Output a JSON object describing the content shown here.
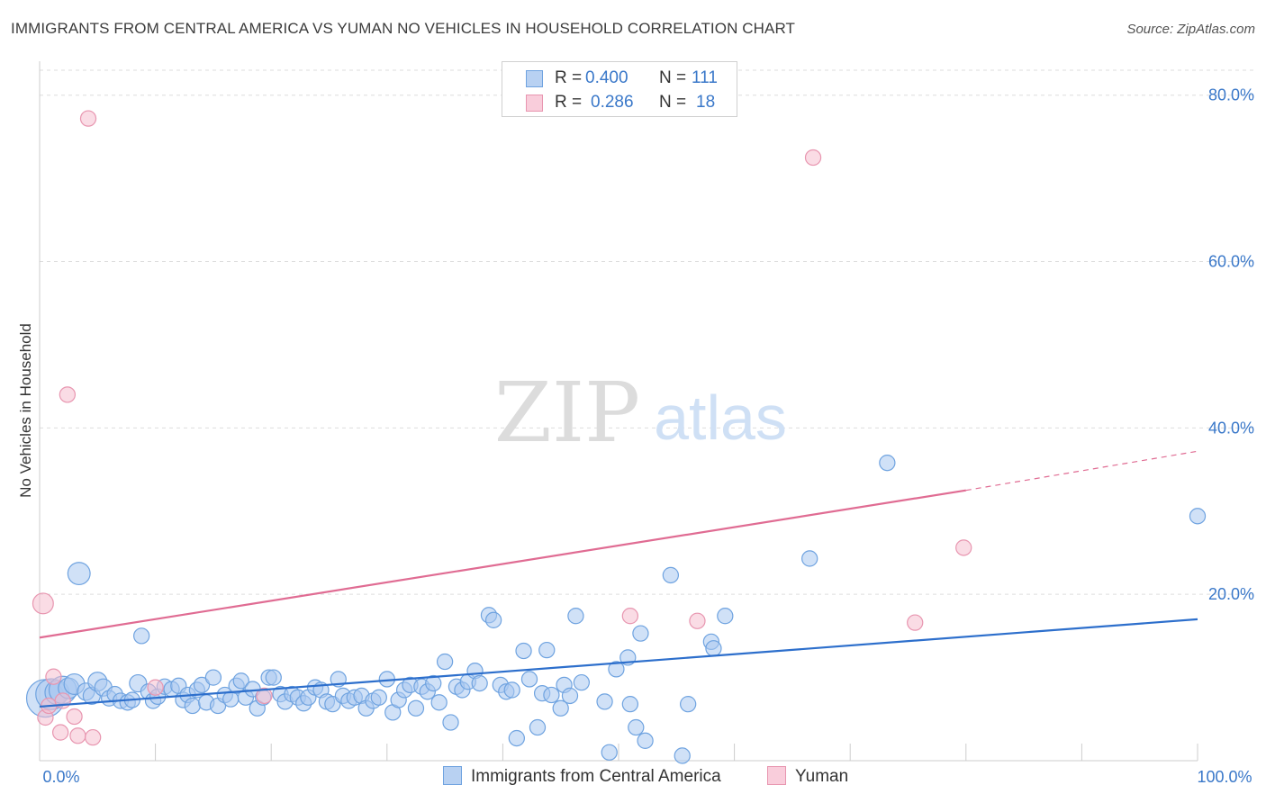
{
  "title": "IMMIGRANTS FROM CENTRAL AMERICA VS YUMAN NO VEHICLES IN HOUSEHOLD CORRELATION CHART",
  "source": "Source: ZipAtlas.com",
  "watermark": {
    "zip": "ZIP",
    "atlas": "atlas"
  },
  "legend_top": {
    "rows": [
      {
        "r_label": "R =",
        "r_value": "0.400",
        "n_label": "N =",
        "n_value": "111"
      },
      {
        "r_label": "R =",
        "r_value": "0.286",
        "n_label": "N =",
        "n_value": "18"
      }
    ]
  },
  "chart_data": {
    "type": "scatter",
    "title": "IMMIGRANTS FROM CENTRAL AMERICA VS YUMAN NO VEHICLES IN HOUSEHOLD CORRELATION CHART",
    "xlabel": "",
    "ylabel": "No Vehicles in Household",
    "xlim": [
      0,
      100
    ],
    "ylim": [
      0,
      83
    ],
    "x_tick_labels": [
      "0.0%",
      "100.0%"
    ],
    "y_ticks": [
      20,
      40,
      60,
      80
    ],
    "y_tick_labels": [
      "20.0%",
      "40.0%",
      "60.0%",
      "80.0%"
    ],
    "grid": true,
    "legend_position": "top-center and bottom",
    "colors": {
      "blue": "#6fa3e0",
      "blue_fill": "#a9c8f0",
      "blue_line": "#2d6fcc",
      "pink": "#e896b0",
      "pink_fill": "#f6bfd0",
      "pink_line": "#e06c93",
      "axis_text": "#3a78c9"
    },
    "series": [
      {
        "name": "Immigrants from Central America",
        "R": 0.4,
        "N": 111,
        "trend": {
          "x": [
            0,
            100
          ],
          "y": [
            6.5,
            17.0
          ],
          "dashed_from": null
        },
        "points": [
          [
            0.5,
            7.5,
            22
          ],
          [
            1,
            8,
            18
          ],
          [
            1.5,
            8.2,
            14
          ],
          [
            2,
            8.5,
            16
          ],
          [
            2.5,
            8.7,
            12
          ],
          [
            3,
            9.2,
            12
          ],
          [
            3.4,
            22.5,
            13
          ],
          [
            4,
            8.3,
            10
          ],
          [
            4.5,
            7.8,
            10
          ],
          [
            5,
            9.5,
            11
          ],
          [
            5.5,
            8.8,
            10
          ],
          [
            6,
            7.5,
            9
          ],
          [
            6.5,
            8.0,
            9
          ],
          [
            7,
            7.2,
            9
          ],
          [
            7.6,
            7.0,
            9
          ],
          [
            8,
            7.3,
            9
          ],
          [
            8.5,
            9.3,
            10
          ],
          [
            8.8,
            15.0,
            9
          ],
          [
            9.4,
            8.3,
            9
          ],
          [
            9.8,
            7.2,
            9
          ],
          [
            10.2,
            7.7,
            9
          ],
          [
            10.8,
            8.9,
            9
          ],
          [
            11.4,
            8.6,
            9
          ],
          [
            12,
            9.0,
            9
          ],
          [
            12.4,
            7.3,
            9
          ],
          [
            12.8,
            7.9,
            9
          ],
          [
            13.2,
            6.6,
            9
          ],
          [
            13.6,
            8.5,
            9
          ],
          [
            14,
            9.1,
            9
          ],
          [
            14.4,
            7.0,
            9
          ],
          [
            15,
            10.0,
            9
          ],
          [
            15.4,
            6.6,
            9
          ],
          [
            16,
            7.9,
            9
          ],
          [
            16.5,
            7.4,
            9
          ],
          [
            17,
            9.0,
            9
          ],
          [
            17.4,
            9.6,
            9
          ],
          [
            17.8,
            7.6,
            9
          ],
          [
            18.4,
            8.6,
            9
          ],
          [
            18.8,
            6.3,
            9
          ],
          [
            19.3,
            7.6,
            9
          ],
          [
            19.8,
            10.0,
            9
          ],
          [
            20.2,
            10.0,
            9
          ],
          [
            20.8,
            8.0,
            9
          ],
          [
            21.2,
            7.1,
            9
          ],
          [
            21.8,
            8.0,
            9
          ],
          [
            22.3,
            7.6,
            9
          ],
          [
            22.8,
            6.9,
            9
          ],
          [
            23.2,
            7.6,
            9
          ],
          [
            23.8,
            8.8,
            9
          ],
          [
            24.3,
            8.5,
            9
          ],
          [
            24.8,
            7.1,
            9
          ],
          [
            25.3,
            6.8,
            9
          ],
          [
            25.8,
            9.8,
            9
          ],
          [
            26.2,
            7.8,
            9
          ],
          [
            26.7,
            7.2,
            9
          ],
          [
            27.2,
            7.6,
            9
          ],
          [
            27.8,
            7.8,
            9
          ],
          [
            28.2,
            6.3,
            9
          ],
          [
            28.8,
            7.2,
            9
          ],
          [
            29.3,
            7.6,
            9
          ],
          [
            30,
            9.8,
            9
          ],
          [
            30.5,
            5.8,
            9
          ],
          [
            31,
            7.3,
            9
          ],
          [
            31.5,
            8.5,
            9
          ],
          [
            32,
            9.1,
            9
          ],
          [
            32.5,
            6.3,
            9
          ],
          [
            33,
            8.9,
            9
          ],
          [
            33.5,
            8.3,
            9
          ],
          [
            34,
            9.3,
            9
          ],
          [
            34.5,
            7.0,
            9
          ],
          [
            35,
            11.9,
            9
          ],
          [
            35.5,
            4.6,
            9
          ],
          [
            36,
            8.9,
            9
          ],
          [
            36.5,
            8.5,
            9
          ],
          [
            37,
            9.5,
            9
          ],
          [
            37.6,
            10.8,
            9
          ],
          [
            38,
            9.3,
            9
          ],
          [
            38.8,
            17.5,
            9
          ],
          [
            39.2,
            16.9,
            9
          ],
          [
            39.8,
            9.1,
            9
          ],
          [
            40.3,
            8.3,
            9
          ],
          [
            40.8,
            8.5,
            9
          ],
          [
            41.2,
            2.7,
            9
          ],
          [
            41.8,
            13.2,
            9
          ],
          [
            42.3,
            9.8,
            9
          ],
          [
            43,
            4.0,
            9
          ],
          [
            43.4,
            8.1,
            9
          ],
          [
            43.8,
            13.3,
            9
          ],
          [
            44.2,
            7.9,
            9
          ],
          [
            45,
            6.3,
            9
          ],
          [
            45.3,
            9.1,
            9
          ],
          [
            45.8,
            7.8,
            9
          ],
          [
            46.3,
            17.4,
            9
          ],
          [
            46.8,
            9.4,
            9
          ],
          [
            48.8,
            7.1,
            9
          ],
          [
            49.2,
            1.0,
            9
          ],
          [
            49.8,
            11.0,
            9
          ],
          [
            50.8,
            12.4,
            9
          ],
          [
            51,
            6.8,
            9
          ],
          [
            51.5,
            4.0,
            9
          ],
          [
            51.9,
            15.3,
            9
          ],
          [
            52.3,
            2.4,
            9
          ],
          [
            54.5,
            22.3,
            9
          ],
          [
            55.5,
            0.6,
            9
          ],
          [
            56,
            6.8,
            9
          ],
          [
            58,
            14.3,
            9
          ],
          [
            58.2,
            13.5,
            9
          ],
          [
            59.2,
            17.4,
            9
          ],
          [
            66.5,
            24.3,
            9
          ],
          [
            73.2,
            35.8,
            9
          ],
          [
            100,
            29.4,
            9
          ]
        ]
      },
      {
        "name": "Yuman",
        "R": 0.286,
        "N": 18,
        "trend": {
          "x": [
            0,
            80,
            100
          ],
          "y": [
            14.8,
            32.5,
            37.2
          ],
          "dashed_from": 80
        },
        "points": [
          [
            0.3,
            18.9,
            12
          ],
          [
            0.5,
            5.2,
            9
          ],
          [
            0.8,
            6.6,
            9
          ],
          [
            1.2,
            10.1,
            9
          ],
          [
            1.8,
            3.4,
            9
          ],
          [
            2.0,
            7.2,
            9
          ],
          [
            2.4,
            44.0,
            9
          ],
          [
            3.0,
            5.3,
            9
          ],
          [
            3.3,
            3.0,
            9
          ],
          [
            4.2,
            77.2,
            9
          ],
          [
            4.6,
            2.8,
            9
          ],
          [
            10.0,
            8.8,
            9
          ],
          [
            19.4,
            7.8,
            9
          ],
          [
            51.0,
            17.4,
            9
          ],
          [
            56.8,
            16.8,
            9
          ],
          [
            66.8,
            72.5,
            9
          ],
          [
            75.6,
            16.6,
            9
          ],
          [
            79.8,
            25.6,
            9
          ]
        ]
      }
    ]
  }
}
